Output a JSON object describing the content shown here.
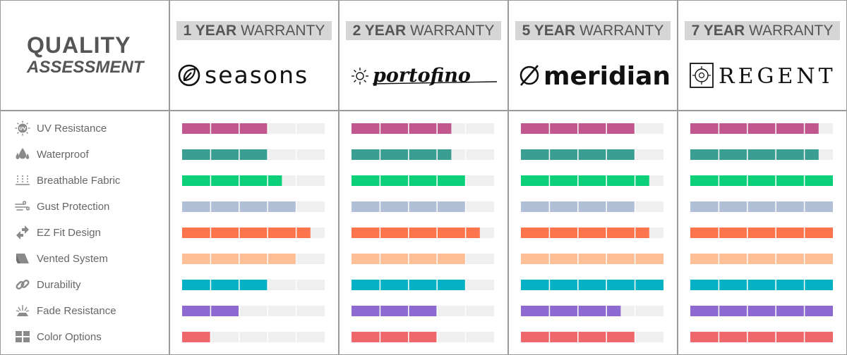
{
  "title": {
    "line1": "QUALITY",
    "line2": "ASSESSMENT"
  },
  "brands": [
    {
      "name": "seasons",
      "warranty_years": "1 YEAR",
      "warranty_word": "WARRANTY"
    },
    {
      "name": "portofino",
      "warranty_years": "2 YEAR",
      "warranty_word": "WARRANTY"
    },
    {
      "name": "meridian",
      "warranty_years": "5 YEAR",
      "warranty_word": "WARRANTY"
    },
    {
      "name": "REGENT",
      "warranty_years": "7 YEAR",
      "warranty_word": "WARRANTY"
    }
  ],
  "features": [
    {
      "label": "UV Resistance",
      "icon": "uv-icon",
      "color": "#c2578e"
    },
    {
      "label": "Waterproof",
      "icon": "water-drops-icon",
      "color": "#3a9e92"
    },
    {
      "label": "Breathable Fabric",
      "icon": "breathable-icon",
      "color": "#0ccf7a"
    },
    {
      "label": "Gust Protection",
      "icon": "wind-icon",
      "color": "#b1c0d6"
    },
    {
      "label": "EZ Fit Design",
      "icon": "arrows-icon",
      "color": "#fe744c"
    },
    {
      "label": "Vented System",
      "icon": "vent-icon",
      "color": "#febe96"
    },
    {
      "label": "Durability",
      "icon": "chain-link-icon",
      "color": "#05b1c4"
    },
    {
      "label": "Fade Resistance",
      "icon": "sun-fade-icon",
      "color": "#8d6ad2"
    },
    {
      "label": "Color Options",
      "icon": "palette-blocks-icon",
      "color": "#ee676a"
    }
  ],
  "chart_data": {
    "type": "bar",
    "orientation": "horizontal",
    "max_score": 10,
    "categories": [
      "UV Resistance",
      "Waterproof",
      "Breathable Fabric",
      "Gust Protection",
      "EZ Fit Design",
      "Vented System",
      "Durability",
      "Fade Resistance",
      "Color Options"
    ],
    "series": [
      {
        "name": "seasons",
        "values": [
          6,
          6,
          7,
          8,
          9,
          8,
          6,
          4,
          2
        ]
      },
      {
        "name": "portofino",
        "values": [
          7,
          7,
          8,
          8,
          9,
          8,
          8,
          6,
          6
        ]
      },
      {
        "name": "meridian",
        "values": [
          8,
          8,
          9,
          8,
          9,
          10,
          10,
          7,
          8
        ]
      },
      {
        "name": "REGENT",
        "values": [
          9,
          9,
          10,
          10,
          10,
          10,
          10,
          10,
          10
        ]
      }
    ],
    "track_color": "#efefef"
  }
}
